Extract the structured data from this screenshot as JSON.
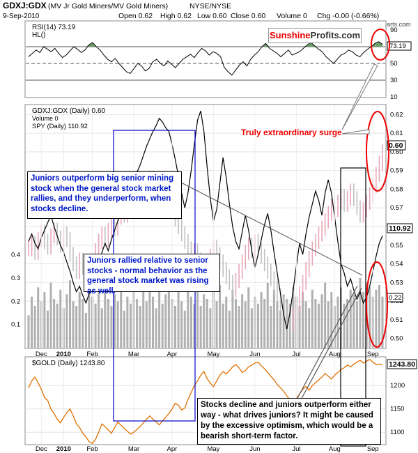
{
  "header": {
    "symbol": "GDXJ:GDX",
    "description": "(MV Jr Gold Miners/MV Gold Miners)",
    "exchange": "NYSE/NYSE",
    "date": "9-Sep-2010",
    "open": "Open 0.62",
    "high": "High 0.62",
    "low": "Low 0.60",
    "close": "Close 0.60",
    "volume": "Volume 0",
    "chg": "Chg -0.00 (-0.66%)",
    "source": "@StockCharts.com"
  },
  "logo": {
    "part1": "Sunshine",
    "part2": "Profits.com"
  },
  "colors": {
    "ratio_bar": "#c0c0c0",
    "ratio_bar_up": "#e8a8b8",
    "spy_line": "#000000",
    "gold_line": "#e07000",
    "annotation_blue": "#0018c8",
    "highlight_red": "#e00000",
    "box_blue": "#0000cc"
  },
  "chart_data": [
    {
      "id": "rsi",
      "type": "line",
      "title": "RSI(14) 73.19",
      "legend": [
        "RSI(14) 73.19",
        "HL()"
      ],
      "value_label": "73.19",
      "ylim": [
        10,
        100
      ],
      "yticks": [
        10,
        30,
        50,
        70,
        90
      ],
      "reference_lines": [
        30,
        50,
        70
      ],
      "values": [
        58,
        62,
        66,
        63,
        70,
        67,
        64,
        68,
        62,
        57,
        60,
        65,
        70,
        67,
        63,
        66,
        72,
        75,
        70,
        66,
        60,
        55,
        52,
        56,
        50,
        45,
        40,
        38,
        44,
        50,
        47,
        41,
        44,
        52,
        55,
        50,
        47,
        53,
        49,
        45,
        50,
        55,
        58,
        61,
        57,
        63,
        68,
        65,
        60,
        64,
        62,
        58,
        45,
        40,
        36,
        42,
        48,
        52,
        47,
        55,
        60,
        64,
        70,
        74,
        68,
        65,
        62,
        58,
        62,
        66,
        60,
        62,
        64,
        68,
        72,
        75,
        71,
        67,
        64,
        58,
        54,
        50,
        55,
        60,
        62,
        66,
        64,
        60,
        58,
        63,
        67,
        70,
        74,
        76,
        73
      ],
      "highlight_start_index": 89
    },
    {
      "id": "ratio",
      "type": "line",
      "title": "GDXJ:GDX (Daily) 0.60",
      "legend": [
        "GDXJ:GDX (Daily) 0.60",
        "Volume 0",
        "SPY (Daily) 110.92"
      ],
      "ylim": [
        0.495,
        0.625
      ],
      "yticks": [
        0.5,
        0.51,
        0.52,
        0.53,
        0.54,
        0.55,
        0.56,
        0.57,
        0.58,
        0.59,
        0.6,
        0.61,
        0.62
      ],
      "left_ticks": [
        "0.1",
        "0.2",
        "0.3",
        "0.4"
      ],
      "last_ratio_label": "0.60",
      "last_spy_label": "110.92",
      "last_vol_label": "0.22",
      "x_labels": [
        {
          "label": "Dec",
          "i": 4
        },
        {
          "label": "2010",
          "i": 11
        },
        {
          "label": "Feb",
          "i": 20
        },
        {
          "label": "Mar",
          "i": 33
        },
        {
          "label": "Apr",
          "i": 45
        },
        {
          "label": "May",
          "i": 58
        },
        {
          "label": "Jun",
          "i": 71
        },
        {
          "label": "Jul",
          "i": 84
        },
        {
          "label": "Aug",
          "i": 96
        },
        {
          "label": "Sep",
          "i": 108
        }
      ],
      "ratio_series": [
        0.548,
        0.551,
        0.546,
        0.553,
        0.557,
        0.552,
        0.549,
        0.555,
        0.558,
        0.554,
        0.55,
        0.556,
        0.553,
        0.545,
        0.54,
        0.536,
        0.542,
        0.538,
        0.533,
        0.537,
        0.542,
        0.547,
        0.552,
        0.556,
        0.553,
        0.558,
        0.562,
        0.559,
        0.565,
        0.569,
        0.566,
        0.572,
        0.576,
        0.573,
        0.578,
        0.581,
        0.577,
        0.583,
        0.586,
        0.582,
        0.579,
        0.584,
        0.58,
        0.575,
        0.571,
        0.568,
        0.564,
        0.56,
        0.556,
        0.552,
        0.548,
        0.544,
        0.547,
        0.542,
        0.538,
        0.534,
        0.539,
        0.544,
        0.549,
        0.545,
        0.541,
        0.537,
        0.533,
        0.53,
        0.526,
        0.531,
        0.536,
        0.541,
        0.546,
        0.55,
        0.547,
        0.552,
        0.548,
        0.544,
        0.54,
        0.536,
        0.532,
        0.528,
        0.523,
        0.519,
        0.515,
        0.511,
        0.508,
        0.512,
        0.518,
        0.524,
        0.53,
        0.537,
        0.543,
        0.548,
        0.552,
        0.556,
        0.559,
        0.563,
        0.567,
        0.571,
        0.569,
        0.573,
        0.576,
        0.572,
        0.575,
        0.579,
        0.575,
        0.57,
        0.566,
        0.569,
        0.573,
        0.577,
        0.582,
        0.588,
        0.594,
        0.6
      ],
      "spy_series": [
        0.552,
        0.556,
        0.551,
        0.548,
        0.554,
        0.558,
        0.562,
        0.566,
        0.56,
        0.555,
        0.55,
        0.546,
        0.541,
        0.536,
        0.53,
        0.525,
        0.528,
        0.523,
        0.519,
        0.524,
        0.53,
        0.535,
        0.541,
        0.546,
        0.551,
        0.547,
        0.553,
        0.558,
        0.563,
        0.567,
        0.572,
        0.576,
        0.58,
        0.585,
        0.589,
        0.593,
        0.598,
        0.603,
        0.607,
        0.611,
        0.614,
        0.618,
        0.616,
        0.613,
        0.611,
        0.604,
        0.596,
        0.587,
        0.578,
        0.57,
        0.578,
        0.59,
        0.604,
        0.617,
        0.622,
        0.611,
        0.592,
        0.575,
        0.563,
        0.569,
        0.583,
        0.597,
        0.586,
        0.572,
        0.56,
        0.552,
        0.548,
        0.557,
        0.566,
        0.558,
        0.547,
        0.538,
        0.545,
        0.553,
        0.561,
        0.567,
        0.558,
        0.546,
        0.535,
        0.524,
        0.513,
        0.505,
        0.514,
        0.526,
        0.539,
        0.551,
        0.545,
        0.556,
        0.565,
        0.572,
        0.579,
        0.574,
        0.566,
        0.578,
        0.585,
        0.578,
        0.565,
        0.552,
        0.54,
        0.535,
        0.528,
        0.532,
        0.526,
        0.521,
        0.525,
        0.519,
        0.522,
        0.528,
        0.536,
        0.544,
        0.551,
        0.555
      ],
      "volume_series": [
        0.14,
        0.22,
        0.18,
        0.26,
        0.2,
        0.24,
        0.16,
        0.28,
        0.21,
        0.19,
        0.25,
        0.17,
        0.23,
        0.29,
        0.2,
        0.18,
        0.24,
        0.21,
        0.15,
        0.26,
        0.22,
        0.19,
        0.24,
        0.17,
        0.27,
        0.21,
        0.18,
        0.23,
        0.2,
        0.25,
        0.16,
        0.22,
        0.19,
        0.26,
        0.21,
        0.18,
        0.24,
        0.2,
        0.27,
        0.22,
        0.17,
        0.25,
        0.19,
        0.23,
        0.28,
        0.21,
        0.18,
        0.24,
        0.2,
        0.16,
        0.26,
        0.22,
        0.19,
        0.25,
        0.18,
        0.23,
        0.21,
        0.17,
        0.24,
        0.2,
        0.27,
        0.19,
        0.22,
        0.16,
        0.25,
        0.21,
        0.18,
        0.23,
        0.2,
        0.26,
        0.17,
        0.22,
        0.19,
        0.24,
        0.21,
        0.28,
        0.18,
        0.25,
        0.2,
        0.16,
        0.23,
        0.21,
        0.19,
        0.26,
        0.22,
        0.18,
        0.24,
        0.2,
        0.17,
        0.25,
        0.21,
        0.19,
        0.23,
        0.28,
        0.2,
        0.24,
        0.18,
        0.22,
        0.26,
        0.19,
        0.21,
        0.25,
        0.23,
        0.2,
        0.3,
        0.24,
        0.28,
        0.26,
        0.22,
        0.25,
        0.27,
        0.22
      ],
      "volume_ylim": [
        0,
        0.45
      ]
    },
    {
      "id": "gold",
      "type": "line",
      "title": "$GOLD (Daily) 1243.80",
      "legend": [
        "$GOLD (Daily) 1243.80"
      ],
      "value_label": "1243.80",
      "ylim": [
        1075,
        1260
      ],
      "yticks": [
        1100,
        1150,
        1200
      ],
      "x_labels": [
        {
          "label": "Dec",
          "i": 4
        },
        {
          "label": "2010",
          "i": 11
        },
        {
          "label": "Feb",
          "i": 20
        },
        {
          "label": "Mar",
          "i": 33
        },
        {
          "label": "Apr",
          "i": 45
        },
        {
          "label": "May",
          "i": 58
        },
        {
          "label": "Jun",
          "i": 71
        },
        {
          "label": "Jul",
          "i": 84
        },
        {
          "label": "Aug",
          "i": 96
        },
        {
          "label": "Sep",
          "i": 108
        }
      ],
      "values": [
        1195,
        1210,
        1218,
        1206,
        1192,
        1175,
        1168,
        1150,
        1140,
        1128,
        1120,
        1132,
        1142,
        1150,
        1135,
        1118,
        1110,
        1098,
        1090,
        1080,
        1076,
        1085,
        1100,
        1118,
        1112,
        1105,
        1098,
        1110,
        1122,
        1115,
        1108,
        1102,
        1096,
        1100,
        1106,
        1112,
        1120,
        1128,
        1135,
        1128,
        1122,
        1116,
        1124,
        1132,
        1140,
        1150,
        1162,
        1158,
        1148,
        1152,
        1170,
        1185,
        1200,
        1210,
        1222,
        1230,
        1215,
        1205,
        1198,
        1210,
        1222,
        1230,
        1225,
        1232,
        1240,
        1245,
        1238,
        1228,
        1232,
        1240,
        1244,
        1248,
        1250,
        1242,
        1236,
        1228,
        1220,
        1212,
        1202,
        1195,
        1188,
        1178,
        1170,
        1162,
        1172,
        1182,
        1192,
        1198,
        1190,
        1200,
        1206,
        1212,
        1218,
        1226,
        1220,
        1214,
        1222,
        1228,
        1234,
        1238,
        1244,
        1240,
        1246,
        1250,
        1254,
        1248,
        1252,
        1256,
        1250,
        1245,
        1246,
        1243.8
      ]
    }
  ],
  "annotations": {
    "surge": "Truly extraordinary surge",
    "box1": "Juniors outperform big senior mining stock when the general stock market rallies, and they underperform, when stocks decline.",
    "box2": "Juniors rallied relative to senior stocks - normal behavior as the general stock market was rising as well.",
    "box3": "Stocks decline and juniors outperform either way - what drives juniors? It might be caused by the excessive optimism, which would be a bearish short-term factor."
  }
}
